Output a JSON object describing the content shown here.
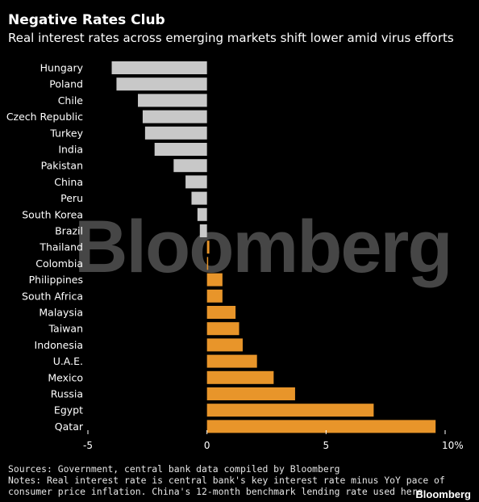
{
  "header": {
    "title": "Negative Rates Club",
    "subtitle": "Real interest rates across emerging markets shift lower amid virus efforts"
  },
  "watermark": "Bloomberg",
  "footer": {
    "sources": "Sources: Government, central bank data compiled by Bloomberg",
    "notes_line1": "Notes: Real interest rate is central bank's key interest rate minus YoY pace of",
    "notes_line2": "consumer price inflation. China's 12-month benchmark lending rate used here",
    "brand": "Bloomberg"
  },
  "colors": {
    "negative": "#c8c8c8",
    "positive": "#e8952a",
    "background": "#000000",
    "text": "#ffffff",
    "axis": "#ffffff"
  },
  "chart_data": {
    "type": "bar",
    "orientation": "horizontal",
    "title": "Negative Rates Club",
    "subtitle": "Real interest rates across emerging markets shift lower amid virus efforts",
    "categories": [
      "Hungary",
      "Poland",
      "Chile",
      "Czech Republic",
      "Turkey",
      "India",
      "Pakistan",
      "China",
      "Peru",
      "South Korea",
      "Brazil",
      "Thailand",
      "Colombia",
      "Philippines",
      "South Africa",
      "Malaysia",
      "Taiwan",
      "Indonesia",
      "U.A.E.",
      "Mexico",
      "Russia",
      "Egypt",
      "Qatar"
    ],
    "values": [
      -4.0,
      -3.8,
      -2.9,
      -2.7,
      -2.6,
      -2.2,
      -1.4,
      -0.9,
      -0.65,
      -0.4,
      -0.3,
      0.1,
      0.05,
      0.65,
      0.65,
      1.2,
      1.35,
      1.5,
      2.1,
      2.8,
      3.7,
      7.0,
      9.6
    ],
    "xticks": [
      "-5",
      "0",
      "5",
      "10%"
    ],
    "xtick_values": [
      -5,
      0,
      5,
      10
    ],
    "xlim": [
      -5,
      10
    ],
    "grid": false
  }
}
